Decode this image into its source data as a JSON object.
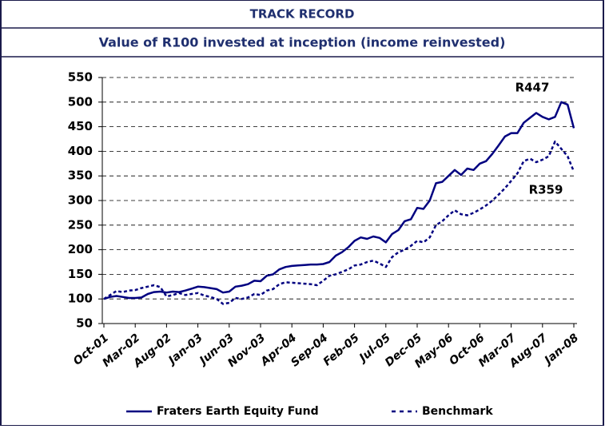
{
  "chart_data": {
    "type": "line",
    "header": "TRACK RECORD",
    "title": "Value of R100 invested at inception (income reinvested)",
    "categories": [
      "Oct-01",
      null,
      null,
      null,
      null,
      "Mar-02",
      null,
      null,
      null,
      null,
      "Aug-02",
      null,
      null,
      null,
      null,
      "Jan-03",
      null,
      null,
      null,
      null,
      "Jun-03",
      null,
      null,
      null,
      null,
      "Nov-03",
      null,
      null,
      null,
      null,
      "Apr-04",
      null,
      null,
      null,
      null,
      "Sep-04",
      null,
      null,
      null,
      null,
      "Feb-05",
      null,
      null,
      null,
      null,
      "Jul-05",
      null,
      null,
      null,
      null,
      "Dec-05",
      null,
      null,
      null,
      null,
      "May-06",
      null,
      null,
      null,
      null,
      "Oct-06",
      null,
      null,
      null,
      null,
      "Mar-07",
      null,
      null,
      null,
      null,
      "Aug-07",
      null,
      null,
      null,
      null,
      "Jan-08"
    ],
    "series": [
      {
        "name": "Fraters Earth Equity Fund",
        "color": "#000080",
        "dash": false,
        "values": [
          100,
          104,
          106,
          104,
          102,
          102,
          103,
          110,
          114,
          115,
          113,
          115,
          114,
          117,
          121,
          125,
          124,
          122,
          120,
          113,
          115,
          125,
          127,
          130,
          137,
          136,
          147,
          150,
          160,
          165,
          167,
          168,
          169,
          170,
          170,
          171,
          175,
          188,
          195,
          205,
          218,
          225,
          222,
          227,
          224,
          215,
          232,
          240,
          258,
          262,
          285,
          283,
          300,
          335,
          338,
          350,
          362,
          352,
          365,
          362,
          375,
          380,
          395,
          412,
          430,
          437,
          437,
          458,
          468,
          478,
          470,
          465,
          470,
          500,
          495,
          447
        ]
      },
      {
        "name": "Benchmark",
        "color": "#000080",
        "dash": true,
        "values": [
          100,
          108,
          116,
          114,
          117,
          118,
          122,
          125,
          128,
          124,
          105,
          108,
          112,
          108,
          110,
          112,
          107,
          104,
          100,
          90,
          92,
          102,
          100,
          103,
          110,
          108,
          117,
          120,
          130,
          134,
          133,
          132,
          131,
          130,
          128,
          137,
          147,
          150,
          155,
          160,
          168,
          170,
          175,
          178,
          172,
          165,
          185,
          195,
          200,
          208,
          218,
          215,
          225,
          250,
          258,
          270,
          280,
          272,
          270,
          275,
          282,
          290,
          300,
          312,
          325,
          340,
          355,
          380,
          385,
          378,
          383,
          390,
          420,
          405,
          390,
          359
        ]
      }
    ],
    "annotations": [
      "R447",
      "R359"
    ],
    "ylim": [
      50,
      550
    ],
    "yticks": [
      50,
      100,
      150,
      200,
      250,
      300,
      350,
      400,
      450,
      500,
      550
    ],
    "grid": true
  }
}
